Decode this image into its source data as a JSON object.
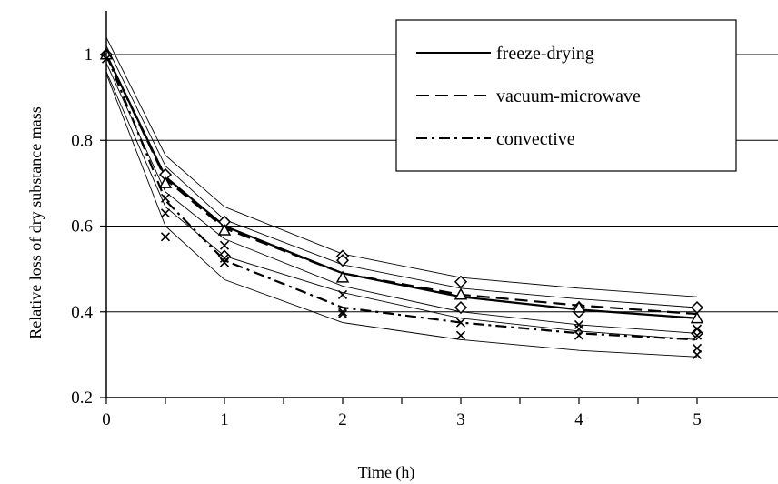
{
  "chart_data": {
    "type": "line",
    "title": "",
    "xlabel": "Time (h)",
    "ylabel": "Relative loss of dry substance mass",
    "xlim": [
      0,
      5.35
    ],
    "ylim": [
      0.2,
      1.1
    ],
    "x_ticks": [
      0,
      1,
      2,
      3,
      4,
      5
    ],
    "y_ticks": [
      0.2,
      0.4,
      0.6,
      0.8,
      1
    ],
    "x_tick_labels": [
      "0",
      "1",
      "2",
      "3",
      "4",
      "5"
    ],
    "y_tick_labels": [
      "0.2",
      "0.4",
      "0.6",
      "0.8",
      "1"
    ],
    "grid": "horizontal",
    "legend_position": "top-right",
    "x": [
      0,
      0.5,
      1,
      2,
      3,
      4,
      5
    ],
    "series": [
      {
        "name": "freeze-drying",
        "style": "solid",
        "values": [
          1.0,
          0.715,
          0.6,
          0.49,
          0.435,
          0.405,
          0.385
        ]
      },
      {
        "name": "vacuum-microwave",
        "style": "dashed",
        "values": [
          1.0,
          0.71,
          0.595,
          0.49,
          0.44,
          0.415,
          0.395
        ]
      },
      {
        "name": "convective",
        "style": "dashdot",
        "values": [
          1.0,
          0.66,
          0.52,
          0.41,
          0.375,
          0.35,
          0.335
        ]
      }
    ],
    "bounds": [
      [
        1.04,
        0.765,
        0.645,
        0.535,
        0.48,
        0.455,
        0.435
      ],
      [
        1.02,
        0.74,
        0.615,
        0.51,
        0.455,
        0.43,
        0.41
      ],
      [
        0.98,
        0.68,
        0.57,
        0.46,
        0.4,
        0.37,
        0.35
      ],
      [
        0.96,
        0.645,
        0.53,
        0.445,
        0.385,
        0.355,
        0.335
      ],
      [
        0.955,
        0.6,
        0.475,
        0.375,
        0.335,
        0.31,
        0.295
      ]
    ],
    "markers": {
      "diamond": [
        [
          0,
          1.0
        ],
        [
          0.5,
          0.72
        ],
        [
          1,
          0.61
        ],
        [
          2,
          0.53
        ],
        [
          3,
          0.47
        ],
        [
          4,
          0.41
        ],
        [
          5,
          0.41
        ],
        [
          3,
          0.41
        ],
        [
          4,
          0.4
        ],
        [
          5,
          0.35
        ],
        [
          2,
          0.52
        ],
        [
          1,
          0.53
        ]
      ],
      "triangle": [
        [
          0,
          1.0
        ],
        [
          0.5,
          0.7
        ],
        [
          1,
          0.59
        ],
        [
          2,
          0.48
        ],
        [
          3,
          0.44
        ],
        [
          4,
          0.41
        ],
        [
          5,
          0.385
        ]
      ],
      "x": [
        [
          0,
          0.99
        ],
        [
          0.5,
          0.575
        ],
        [
          0.5,
          0.63
        ],
        [
          0.5,
          0.665
        ],
        [
          1,
          0.515
        ],
        [
          1,
          0.525
        ],
        [
          1,
          0.555
        ],
        [
          2,
          0.395
        ],
        [
          2,
          0.4
        ],
        [
          2,
          0.44
        ],
        [
          3,
          0.345
        ],
        [
          3,
          0.375
        ],
        [
          4,
          0.345
        ],
        [
          4,
          0.36
        ],
        [
          4,
          0.37
        ],
        [
          5,
          0.3
        ],
        [
          5,
          0.315
        ],
        [
          5,
          0.345
        ],
        [
          5,
          0.36
        ]
      ]
    }
  },
  "legend": {
    "items": [
      {
        "label": "freeze-drying",
        "style": "solid"
      },
      {
        "label": "vacuum-microwave",
        "style": "dashed"
      },
      {
        "label": "convective",
        "style": "dashdot"
      }
    ]
  }
}
